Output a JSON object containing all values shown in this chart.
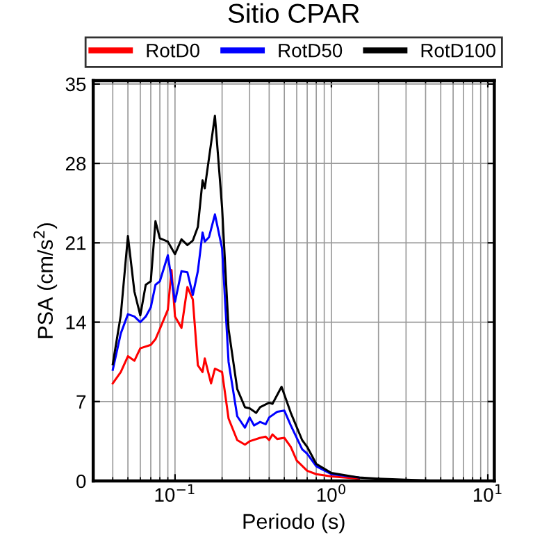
{
  "chart_data": {
    "type": "line",
    "title": "Sitio CPAR",
    "xlabel": "Periodo (s)",
    "ylabel": "PSA (cm/s$^{2}$)",
    "log": "x",
    "xlim": [
      0.03,
      11
    ],
    "ylim": [
      0,
      35.3
    ],
    "xticks": [
      {
        "value": 0.1,
        "label": "10$^{−1}$"
      },
      {
        "value": 1,
        "label": "10$^{0}$"
      },
      {
        "value": 10,
        "label": "10$^{1}$"
      }
    ],
    "yticks": [
      0,
      7,
      14,
      21,
      28,
      35
    ],
    "grid": true,
    "legend": "top",
    "series": [
      {
        "name": "RotD0",
        "color": "#ff0000",
        "x": [
          0.04,
          0.045,
          0.05,
          0.055,
          0.06,
          0.07,
          0.075,
          0.08,
          0.09,
          0.095,
          0.1,
          0.11,
          0.12,
          0.13,
          0.14,
          0.15,
          0.155,
          0.17,
          0.18,
          0.2,
          0.22,
          0.25,
          0.28,
          0.3,
          0.35,
          0.38,
          0.4,
          0.42,
          0.45,
          0.5,
          0.55,
          0.6,
          0.7,
          0.8,
          1.0,
          1.5
        ],
        "values": [
          8.6,
          9.6,
          11.0,
          10.6,
          11.7,
          12.0,
          12.5,
          13.4,
          15.1,
          18.6,
          14.5,
          13.5,
          17.1,
          16.0,
          10.2,
          9.6,
          10.8,
          8.6,
          9.9,
          9.6,
          5.5,
          3.6,
          3.2,
          3.5,
          3.8,
          3.9,
          3.6,
          4.1,
          3.7,
          3.8,
          3.0,
          1.8,
          0.9,
          0.6,
          0.4,
          0.2
        ]
      },
      {
        "name": "RotD50",
        "color": "#0000ff",
        "x": [
          0.04,
          0.045,
          0.05,
          0.055,
          0.06,
          0.065,
          0.07,
          0.075,
          0.08,
          0.09,
          0.1,
          0.11,
          0.12,
          0.13,
          0.14,
          0.15,
          0.155,
          0.165,
          0.18,
          0.2,
          0.22,
          0.25,
          0.28,
          0.3,
          0.32,
          0.35,
          0.38,
          0.4,
          0.45,
          0.5,
          0.55,
          0.65,
          0.7,
          0.8,
          1.0,
          1.5
        ],
        "values": [
          9.8,
          13.0,
          14.7,
          14.5,
          14.0,
          14.5,
          15.3,
          17.3,
          17.6,
          19.9,
          15.8,
          18.5,
          18.4,
          16.4,
          18.5,
          21.9,
          21.1,
          21.5,
          23.5,
          20.5,
          10.5,
          5.7,
          4.7,
          5.6,
          4.9,
          5.2,
          5.0,
          5.6,
          6.1,
          6.2,
          4.9,
          2.8,
          2.4,
          1.3,
          0.6,
          0.3
        ]
      },
      {
        "name": "RotD100",
        "color": "#000000",
        "x": [
          0.04,
          0.045,
          0.05,
          0.055,
          0.06,
          0.065,
          0.07,
          0.075,
          0.08,
          0.09,
          0.1,
          0.11,
          0.12,
          0.13,
          0.14,
          0.15,
          0.155,
          0.18,
          0.2,
          0.22,
          0.25,
          0.28,
          0.3,
          0.33,
          0.35,
          0.4,
          0.42,
          0.48,
          0.55,
          0.65,
          0.7,
          0.8,
          1.0,
          1.5,
          2,
          3,
          5,
          10
        ],
        "values": [
          10.3,
          14.6,
          21.6,
          16.7,
          14.6,
          17.3,
          17.6,
          22.9,
          21.4,
          21.1,
          20.0,
          21.3,
          20.8,
          21.2,
          22.4,
          26.5,
          25.8,
          32.2,
          24.1,
          13.4,
          8.1,
          6.5,
          6.4,
          6.0,
          6.5,
          6.9,
          6.8,
          8.3,
          6.0,
          3.6,
          3.0,
          1.5,
          0.7,
          0.3,
          0.2,
          0.1,
          0.0,
          0.0
        ]
      }
    ]
  }
}
